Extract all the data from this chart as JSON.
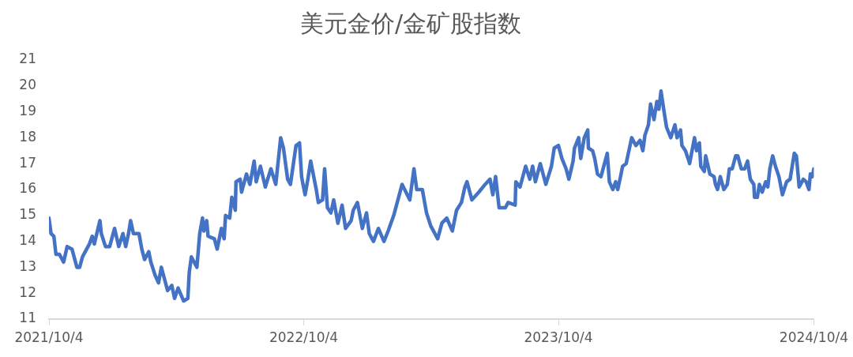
{
  "chart_data": {
    "type": "line",
    "title": "美元金价/金矿股指数",
    "x": [
      "2021-10-04",
      "2021-10-07",
      "2021-10-11",
      "2021-10-14",
      "2021-10-19",
      "2021-10-25",
      "2021-10-30",
      "2021-11-06",
      "2021-11-13",
      "2021-11-17",
      "2021-11-21",
      "2021-11-27",
      "2021-12-01",
      "2021-12-05",
      "2021-12-08",
      "2021-12-16",
      "2021-12-18",
      "2021-12-24",
      "2021-12-30",
      "2022-01-06",
      "2022-01-12",
      "2022-01-18",
      "2022-01-22",
      "2022-01-26",
      "2022-01-29",
      "2022-02-02",
      "2022-02-10",
      "2022-02-14",
      "2022-02-18",
      "2022-02-24",
      "2022-02-27",
      "2022-03-05",
      "2022-03-10",
      "2022-03-14",
      "2022-03-18",
      "2022-03-23",
      "2022-03-29",
      "2022-04-02",
      "2022-04-07",
      "2022-04-15",
      "2022-04-21",
      "2022-04-23",
      "2022-04-26",
      "2022-05-04",
      "2022-05-08",
      "2022-05-12",
      "2022-05-14",
      "2022-05-18",
      "2022-05-20",
      "2022-05-29",
      "2022-06-02",
      "2022-06-08",
      "2022-06-12",
      "2022-06-14",
      "2022-06-20",
      "2022-06-23",
      "2022-06-28",
      "2022-06-29",
      "2022-07-05",
      "2022-07-07",
      "2022-07-14",
      "2022-07-19",
      "2022-07-25",
      "2022-07-28",
      "2022-08-03",
      "2022-08-10",
      "2022-08-18",
      "2022-08-25",
      "2022-09-01",
      "2022-09-05",
      "2022-09-11",
      "2022-09-15",
      "2022-09-23",
      "2022-09-28",
      "2022-10-01",
      "2022-10-03",
      "2022-10-06",
      "2022-10-10",
      "2022-10-14",
      "2022-10-22",
      "2022-10-25",
      "2022-10-31",
      "2022-11-03",
      "2022-11-07",
      "2022-11-12",
      "2022-11-16",
      "2022-11-22",
      "2022-11-28",
      "2022-12-03",
      "2022-12-11",
      "2022-12-14",
      "2022-12-20",
      "2022-12-27",
      "2023-01-02",
      "2023-01-06",
      "2023-01-12",
      "2023-01-19",
      "2023-01-27",
      "2023-02-02",
      "2023-02-10",
      "2023-02-17",
      "2023-02-22",
      "2023-03-05",
      "2023-03-11",
      "2023-03-15",
      "2023-03-23",
      "2023-03-29",
      "2023-04-04",
      "2023-04-14",
      "2023-04-20",
      "2023-04-27",
      "2023-05-05",
      "2023-05-11",
      "2023-05-18",
      "2023-05-23",
      "2023-05-26",
      "2023-06-02",
      "2023-06-12",
      "2023-06-21",
      "2023-06-28",
      "2023-07-02",
      "2023-07-06",
      "2023-07-11",
      "2023-07-20",
      "2023-07-24",
      "2023-08-03",
      "2023-08-04",
      "2023-08-10",
      "2023-08-18",
      "2023-08-24",
      "2023-08-28",
      "2023-09-01",
      "2023-09-08",
      "2023-09-16",
      "2023-09-24",
      "2023-09-28",
      "2023-10-04",
      "2023-10-09",
      "2023-10-15",
      "2023-10-19",
      "2023-10-25",
      "2023-10-27",
      "2023-11-02",
      "2023-11-05",
      "2023-11-10",
      "2023-11-15",
      "2023-11-16",
      "2023-11-22",
      "2023-11-25",
      "2023-11-29",
      "2023-12-04",
      "2023-12-09",
      "2023-12-13",
      "2023-12-16",
      "2023-12-21",
      "2023-12-25",
      "2023-12-28",
      "2024-01-01",
      "2024-01-04",
      "2024-01-09",
      "2024-01-17",
      "2024-01-23",
      "2024-01-29",
      "2024-02-02",
      "2024-02-05",
      "2024-02-10",
      "2024-02-13",
      "2024-02-18",
      "2024-02-22",
      "2024-02-25",
      "2024-02-28",
      "2024-03-04",
      "2024-03-07",
      "2024-03-13",
      "2024-03-19",
      "2024-03-22",
      "2024-03-27",
      "2024-03-29",
      "2024-04-03",
      "2024-04-08",
      "2024-04-09",
      "2024-04-16",
      "2024-04-19",
      "2024-04-23",
      "2024-04-25",
      "2024-04-30",
      "2024-05-02",
      "2024-05-08",
      "2024-05-14",
      "2024-05-16",
      "2024-05-19",
      "2024-05-23",
      "2024-05-28",
      "2024-06-02",
      "2024-06-05",
      "2024-06-09",
      "2024-06-14",
      "2024-06-17",
      "2024-06-22",
      "2024-06-27",
      "2024-07-01",
      "2024-07-05",
      "2024-07-10",
      "2024-07-11",
      "2024-07-15",
      "2024-07-18",
      "2024-07-22",
      "2024-07-27",
      "2024-07-30",
      "2024-08-02",
      "2024-08-06",
      "2024-08-10",
      "2024-08-15",
      "2024-08-20",
      "2024-08-26",
      "2024-08-31",
      "2024-09-06",
      "2024-09-09",
      "2024-09-13",
      "2024-09-19",
      "2024-09-23",
      "2024-09-27",
      "2024-09-29",
      "2024-10-02",
      "2024-10-04"
    ],
    "series": [
      {
        "color": "#4472c4",
        "values": [
          14.9,
          14.3,
          14.2,
          13.5,
          13.5,
          13.2,
          13.8,
          13.7,
          13.0,
          13.0,
          13.4,
          13.7,
          13.9,
          14.2,
          13.9,
          14.8,
          14.3,
          13.8,
          13.8,
          14.5,
          13.8,
          14.3,
          13.8,
          14.3,
          14.8,
          14.3,
          14.3,
          13.7,
          13.3,
          13.6,
          13.2,
          12.7,
          12.4,
          13.0,
          12.6,
          12.1,
          12.3,
          11.8,
          12.2,
          11.7,
          11.8,
          12.8,
          13.4,
          13.0,
          14.3,
          14.9,
          14.4,
          14.8,
          14.2,
          14.1,
          13.7,
          14.5,
          14.1,
          15.0,
          14.9,
          15.7,
          15.2,
          16.3,
          16.4,
          15.9,
          16.6,
          16.2,
          17.1,
          16.3,
          16.9,
          16.1,
          16.8,
          16.2,
          18.0,
          17.6,
          16.4,
          16.2,
          17.7,
          17.8,
          16.5,
          16.2,
          15.8,
          16.4,
          17.1,
          16.0,
          15.5,
          15.6,
          16.8,
          15.3,
          15.1,
          15.6,
          14.7,
          15.4,
          14.5,
          14.8,
          15.2,
          15.5,
          14.5,
          15.1,
          14.3,
          14.0,
          14.5,
          14.0,
          14.4,
          15.0,
          15.7,
          16.2,
          15.6,
          16.8,
          16.0,
          16.0,
          15.1,
          14.6,
          14.1,
          14.7,
          14.9,
          14.4,
          15.2,
          15.5,
          16.1,
          16.3,
          15.6,
          15.9,
          16.2,
          16.4,
          15.8,
          16.5,
          15.3,
          15.3,
          15.5,
          15.4,
          16.3,
          16.1,
          16.9,
          16.4,
          16.9,
          16.3,
          17.0,
          16.2,
          16.9,
          17.6,
          17.7,
          17.2,
          16.8,
          16.4,
          17.1,
          17.6,
          18.0,
          17.2,
          18.0,
          18.3,
          17.6,
          17.5,
          17.2,
          16.6,
          16.5,
          17.0,
          17.4,
          16.3,
          16.0,
          16.3,
          16.0,
          16.5,
          16.9,
          17.0,
          18.0,
          17.7,
          17.9,
          17.5,
          18.1,
          18.5,
          19.3,
          18.7,
          19.4,
          19.1,
          19.8,
          18.9,
          18.4,
          18.0,
          18.5,
          18.0,
          18.3,
          17.7,
          17.5,
          17.1,
          17.0,
          18.0,
          17.5,
          17.8,
          16.9,
          16.7,
          17.3,
          16.6,
          16.5,
          16.2,
          16.0,
          16.5,
          16.0,
          16.2,
          16.8,
          16.8,
          17.3,
          17.3,
          16.8,
          16.8,
          17.1,
          16.4,
          16.2,
          15.7,
          15.7,
          16.2,
          15.9,
          16.3,
          16.1,
          16.8,
          17.3,
          16.9,
          16.5,
          15.8,
          16.3,
          16.4,
          17.4,
          17.3,
          16.1,
          16.4,
          16.3,
          16.0,
          16.6,
          16.5,
          16.8
        ]
      }
    ],
    "xlim": [
      "2021-10-04",
      "2024-10-04"
    ],
    "xticks": [
      {
        "value": "2021-10-04",
        "label": "2021/10/4"
      },
      {
        "value": "2022-10-04",
        "label": "2022/10/4"
      },
      {
        "value": "2023-10-04",
        "label": "2023/10/4"
      },
      {
        "value": "2024-10-04",
        "label": "2024/10/4"
      }
    ],
    "ylim": [
      11,
      21
    ],
    "yticks": [
      11,
      12,
      13,
      14,
      15,
      16,
      17,
      18,
      19,
      20,
      21
    ],
    "grid": false,
    "legend": false
  }
}
